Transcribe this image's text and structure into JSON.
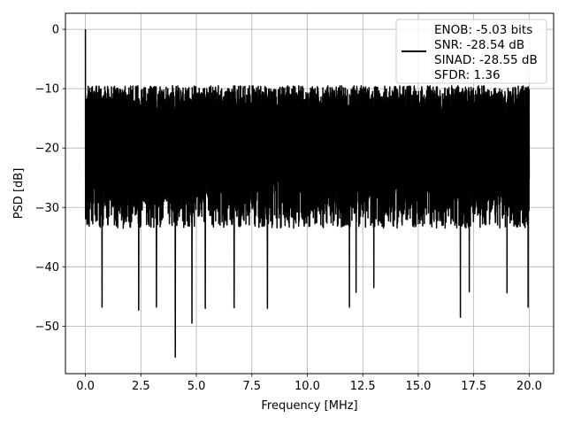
{
  "chart_data": {
    "type": "line",
    "xlabel": "Frequency [MHz]",
    "ylabel": "PSD [dB]",
    "xlim": [
      -0.9,
      21.1
    ],
    "ylim": [
      -58.0,
      2.7
    ],
    "xticks": [
      0.0,
      2.5,
      5.0,
      7.5,
      10.0,
      12.5,
      15.0,
      17.5,
      20.0
    ],
    "xtick_labels": [
      "0.0",
      "2.5",
      "5.0",
      "7.5",
      "10.0",
      "12.5",
      "15.0",
      "17.5",
      "20.0"
    ],
    "yticks": [
      0,
      -10,
      -20,
      -30,
      -40,
      -50
    ],
    "ytick_labels": [
      "0",
      "−10",
      "−20",
      "−30",
      "−40",
      "−50"
    ],
    "grid": true,
    "legend": {
      "placement": "top-right",
      "lines": [
        "ENOB: -5.03 bits",
        "SNR: -28.54 dB",
        "SINAD: -28.55 dB",
        "SFDR: 1.36"
      ]
    },
    "series": [
      {
        "color": "#000000",
        "noise_band": {
          "x_start": 0.0,
          "x_end": 20.0,
          "upper_db": -9.5,
          "lower_db": -33.5
        },
        "peak": {
          "x": 0.0,
          "y": 0.0
        },
        "spikes": [
          {
            "x": 0.75,
            "y": -46.8
          },
          {
            "x": 2.4,
            "y": -47.3
          },
          {
            "x": 3.2,
            "y": -46.8
          },
          {
            "x": 4.05,
            "y": -55.2
          },
          {
            "x": 4.8,
            "y": -49.5
          },
          {
            "x": 5.4,
            "y": -47.0
          },
          {
            "x": 6.7,
            "y": -46.9
          },
          {
            "x": 8.2,
            "y": -47.0
          },
          {
            "x": 11.9,
            "y": -46.8
          },
          {
            "x": 12.2,
            "y": -44.3
          },
          {
            "x": 13.0,
            "y": -43.5
          },
          {
            "x": 16.9,
            "y": -48.5
          },
          {
            "x": 17.3,
            "y": -44.2
          },
          {
            "x": 19.0,
            "y": -44.4
          },
          {
            "x": 19.95,
            "y": -46.8
          }
        ]
      }
    ]
  }
}
